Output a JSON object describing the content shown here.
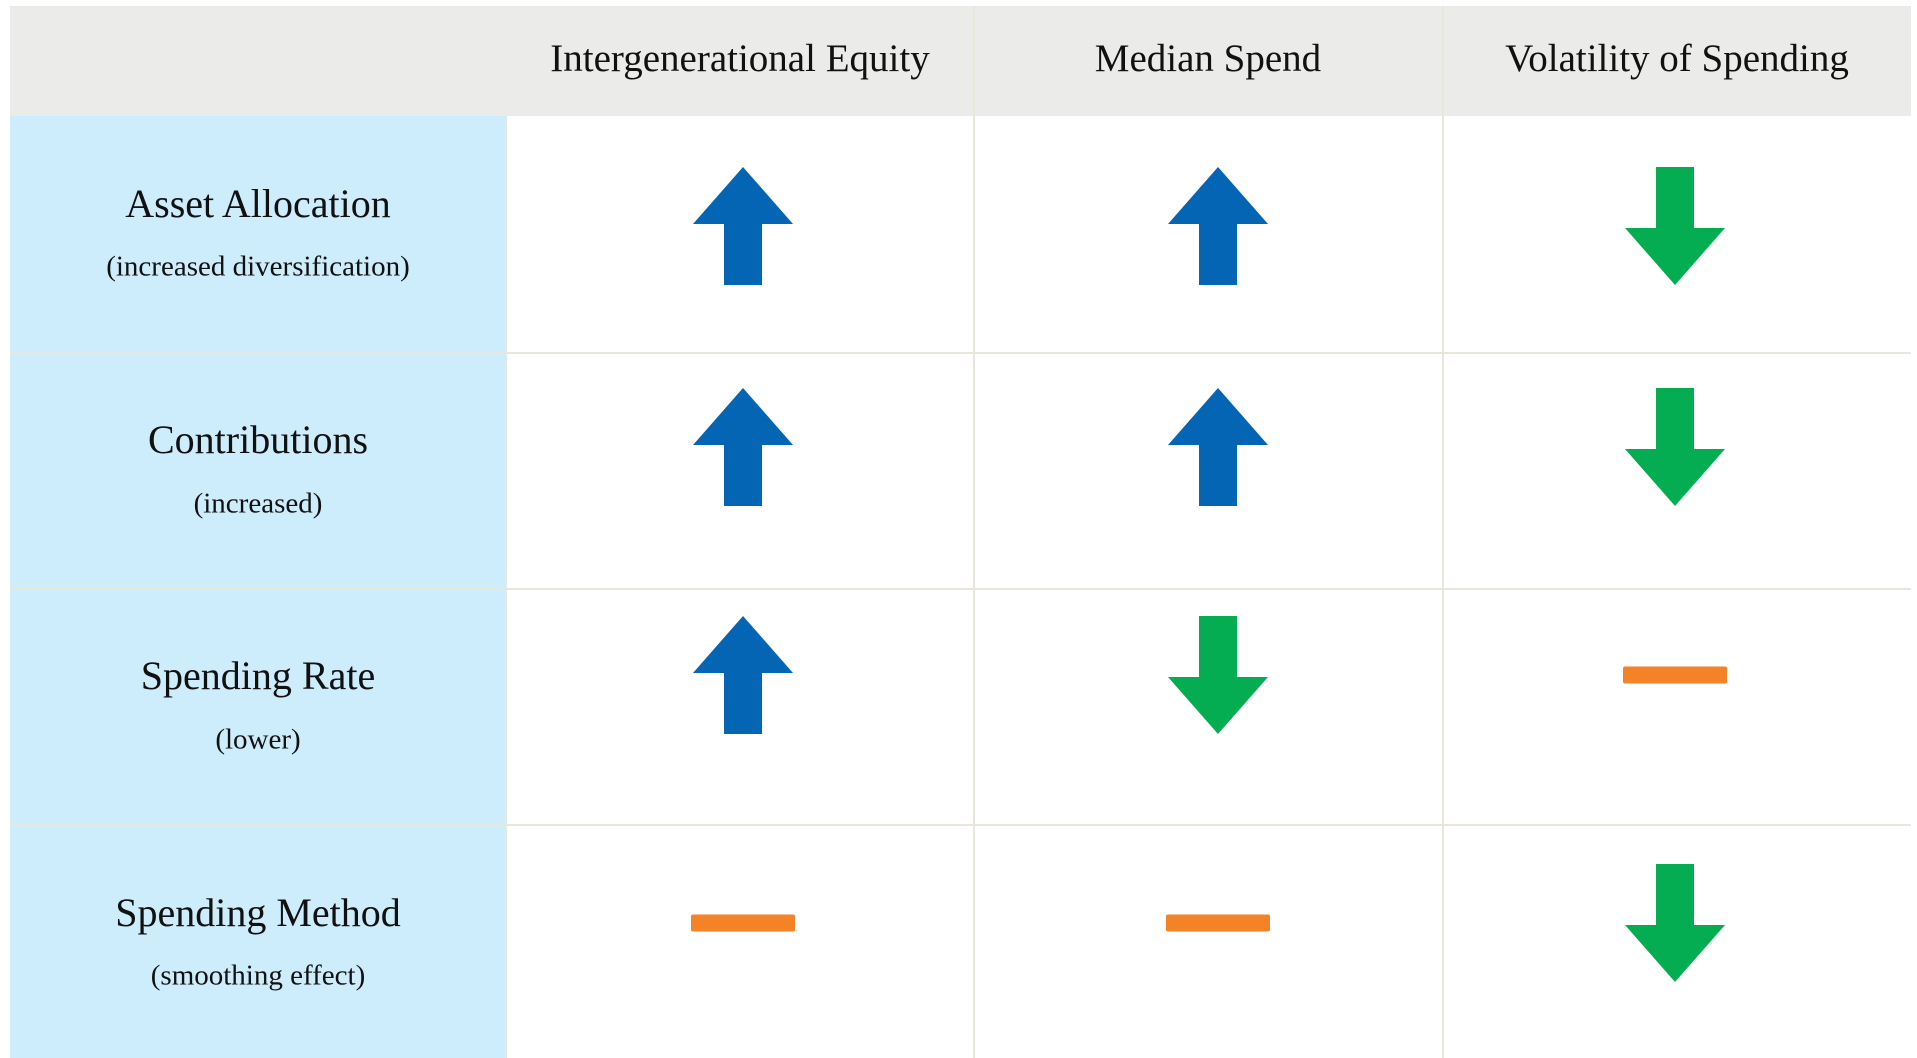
{
  "table": {
    "columns": [
      "Intergenerational Equity",
      "Median Spend",
      "Volatility of Spending"
    ],
    "rows": [
      {
        "label": "Asset Allocation",
        "note": "(increased diversification)"
      },
      {
        "label": "Contributions",
        "note": "(increased)"
      },
      {
        "label": "Spending Rate",
        "note": "(lower)"
      },
      {
        "label": "Spending Method",
        "note": "(smoothing effect)"
      }
    ]
  }
}
